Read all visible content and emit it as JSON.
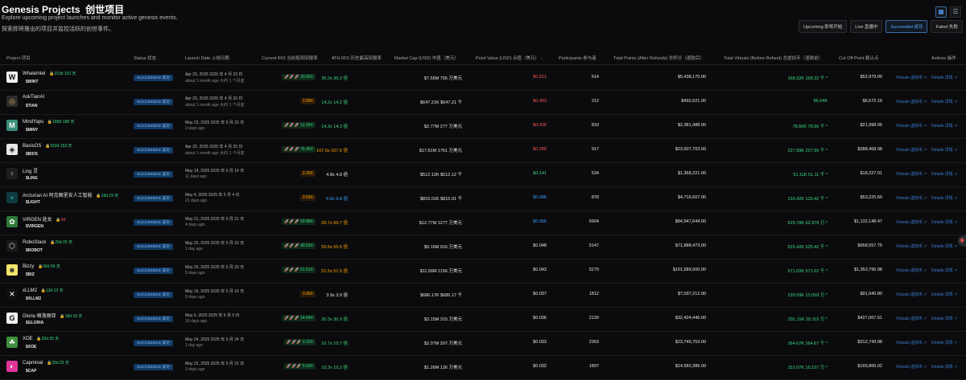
{
  "header": {
    "title": "Genesis Projects",
    "title_cn": "创世项目",
    "subtitle": "Explore upcoming project launches and monitor active genesis events.",
    "subtitle_cn": "探索即将推出的项目并监控活跃的创世事件。"
  },
  "filters": [
    {
      "label": "Upcoming  即将开始",
      "active": false
    },
    {
      "label": "Live  直播中",
      "active": false
    },
    {
      "label": "Succeeded  成功",
      "active": true
    },
    {
      "label": "Failed  失败",
      "active": false
    }
  ],
  "view_buttons": [
    {
      "icon": "grid-view-icon",
      "glyph": "▦"
    },
    {
      "icon": "list-view-icon",
      "glyph": "☰"
    }
  ],
  "columns": {
    "project": "Project  项目",
    "status": "Status  状态",
    "launch": "Launch Date  上线日期",
    "roi": "Current ROI  当前投资回报率",
    "ath": "ATH ROI  历史最高回报率",
    "mcap": "Market Cap (USD)  市值（美元）",
    "pv": "Point Value (USD)  点值（美元）  ↓",
    "participants": "Participants  参与者",
    "points": "Total Points (After Refunds)  总积分（退款后）",
    "virtuals": "Total Virtuals (Before Refund)  总虚拟币（退款前）",
    "cutoff": "Cut Off Point  截止点",
    "actions": "Actions  操作"
  },
  "actions": {
    "virtuals": "Virtuals  虚拟币 ↗",
    "details": "Details  详情 ↗"
  },
  "rows": [
    {
      "name": "WhaleIntel",
      "badge": "153d 153 天",
      "badge_color": "green",
      "ticker": "$WINT",
      "logo_bg": "#f0f0f0",
      "logo_fg": "#111",
      "logo_glyph": "W",
      "status": "SUCCEEDED  成功",
      "date": "Apr 23, 2025  2025 年 4 月 23 日",
      "ago": "about 1 month ago  大约 1 个月前",
      "roi": "33.65X",
      "roi_color": "green",
      "ath": "36.2x  36.2 倍",
      "ath_color": "green",
      "mcap": "$7.55M  755 万美元",
      "pv": "$0.521",
      "pv_color": "red",
      "participants": "614",
      "points": "$5,438,170.00",
      "virtuals": "168.32K  168.32 千 *",
      "cutoff": "$52,979.09"
    },
    {
      "name": "AskTianAI",
      "badge": "",
      "badge_color": "green",
      "ticker": "$TIAN",
      "logo_bg": "#2b2b2b",
      "logo_fg": "#d9b45a",
      "logo_glyph": "◎",
      "status": "SUCCEEDED  成功",
      "date": "Apr 20, 2025  2025 年 4 月 20 日",
      "ago": "about 1 month ago  大约 1 个月前",
      "roi": "2.89X",
      "roi_color": "orange",
      "ath": "14.2x  14.2 倍",
      "ath_color": "green",
      "mcap": "$647.21K  $647.21 千",
      "pv": "$0.493",
      "pv_color": "red",
      "participants": "212",
      "points": "$492,621.00",
      "virtuals": "86.04K",
      "cutoff": "$6,572.15"
    },
    {
      "name": "MindYaps",
      "badge": "188d 188 天",
      "badge_color": "green",
      "ticker": "$MINY",
      "logo_bg": "#3a8f7a",
      "logo_fg": "#fff",
      "logo_glyph": "M",
      "status": "SUCCEEDED  成功",
      "date": "May 23, 2025  2025 年 5 月 23 日",
      "ago": "2 days ago",
      "roi": "12.34X",
      "roi_color": "green",
      "ath": "14.3x  14.3 倍",
      "ath_color": "green",
      "mcap": "$2.77M  277 万美元",
      "pv": "$0.436",
      "pv_color": "red",
      "participants": "810",
      "points": "$2,381,488.00",
      "virtuals": "78.66K  78.66 千 *",
      "cutoff": "$21,998.05"
    },
    {
      "name": "BasisOS",
      "badge": "153d 153 天",
      "badge_color": "green",
      "ticker": "$BIOS",
      "logo_bg": "#e6e6e6",
      "logo_fg": "#111",
      "logo_glyph": "◈",
      "status": "SUCCEEDED  成功",
      "date": "Apr 25, 2025  2025 年 4 月 25 日",
      "ago": "about 1 month ago  大约 1 个月前",
      "roi": "76.45X",
      "roi_color": "green",
      "ath": "107.6x  107.6 倍",
      "ath_color": "orange",
      "mcap": "$17.61M  1761 万美元",
      "pv": "$0.280",
      "pv_color": "red",
      "participants": "917",
      "points": "$23,607,703.00",
      "virtuals": "227.99K  227.99 千 *",
      "cutoff": "$288,468.08"
    },
    {
      "name": "Ling 灵",
      "badge": "",
      "badge_color": "green",
      "ticker": "$LING",
      "logo_bg": "#1e1e1e",
      "logo_fg": "#ccc",
      "logo_glyph": "♀",
      "status": "SUCCEEDED  成功",
      "date": "May 14, 2025  2025 年 5 月 14 日",
      "ago": "11 days ago",
      "roi": "2.29X",
      "roi_color": "orange",
      "ath": "4.8x  4.8 倍",
      "ath_color": "white",
      "mcap": "$512.12K  $512.12 千",
      "pv": "$0.141",
      "pv_color": "green",
      "participants": "534",
      "points": "$1,368,221.00",
      "virtuals": "51.11K  51.11 千 *",
      "cutoff": "$18,227.01"
    },
    {
      "name": "Arcturian AI  阿克图里安人工智能",
      "badge": "19d 19 天",
      "badge_color": "green",
      "ticker": "$LIGHT",
      "logo_bg": "#0f3a40",
      "logo_fg": "#4de0d0",
      "logo_glyph": "♆",
      "status": "SUCCEEDED  成功",
      "date": "May 4, 2025  2025 年 5 月 4 日",
      "ago": "21 days ago",
      "roi": "3.63X",
      "roi_color": "orange",
      "ath": "6.8x  6.8 倍",
      "ath_color": "blue",
      "mcap": "$815.01K  $815.01 千",
      "pv": "$0.085",
      "pv_color": "blue",
      "participants": "878",
      "points": "$4,716,607.00",
      "virtuals": "133.42K  133.42 千 *",
      "cutoff": "$53,225.60"
    },
    {
      "name": "VIRGEN  处女",
      "badge": "0d",
      "badge_color": "red",
      "ticker": "$VIRGEN",
      "logo_bg": "#2f7a3a",
      "logo_fg": "#fff",
      "logo_glyph": "✿",
      "status": "SUCCEEDED  成功",
      "date": "May 21, 2025  2025 年 5 月 21 日",
      "ago": "4 days ago",
      "roi": "59.88X",
      "roi_color": "green",
      "ath": "69.7x  69.7 倍",
      "ath_color": "orange",
      "mcap": "$12.77M  1277 万美元",
      "pv": "$0.056",
      "pv_color": "blue",
      "participants": "5904",
      "points": "$84,947,644.00",
      "virtuals": "629.78K  62.978 万 *",
      "cutoff": "$1,132,148.47"
    },
    {
      "name": "RoboStack",
      "badge": "29d 29 天",
      "badge_color": "green",
      "ticker": "$ROBOT",
      "logo_bg": "#1a1a1a",
      "logo_fg": "#ddd",
      "logo_glyph": "⬡",
      "status": "SUCCEEDED  成功",
      "date": "May 23, 2025  2025 年 5 月 23 日",
      "ago": "1 day ago",
      "roi": "40.91X",
      "roi_color": "green",
      "ath": "55.5x  55.5 倍",
      "ath_color": "orange",
      "mcap": "$9.16M  916 万美元",
      "pv": "$0.048",
      "pv_color": "white",
      "participants": "5147",
      "points": "$71,888,473.00",
      "virtuals": "525.42K  525.42 千 *",
      "cutoff": "$958,557.75"
    },
    {
      "name": "Bizzy",
      "badge": "66d 66 天",
      "badge_color": "green",
      "ticker": "$BIZ",
      "logo_bg": "#f2e36b",
      "logo_fg": "#333",
      "logo_glyph": "☻",
      "status": "SUCCEEDED  成功",
      "date": "May 20, 2025  2025 年 5 月 20 日",
      "ago": "5 days ago",
      "roi": "51.51X",
      "roi_color": "green",
      "ath": "51.5x  51.5 倍",
      "ath_color": "orange",
      "mcap": "$11.56M  1156 万美元",
      "pv": "$0.043",
      "pv_color": "white",
      "participants": "5279",
      "points": "$101,589,000.00",
      "virtuals": "571.02K  571.02 千 *",
      "cutoff": "$1,353,795.98"
    },
    {
      "name": "xLLM2",
      "badge": "13d 13 天",
      "badge_color": "green",
      "ticker": "$XLLM2",
      "logo_bg": "#111",
      "logo_fg": "#fff",
      "logo_glyph": "✕",
      "status": "SUCCEEDED  成功",
      "date": "May 16, 2025  2025 年 5 月 16 日",
      "ago": "9 days ago",
      "roi": "3.06X",
      "roi_color": "orange",
      "ath": "3.9x  3.9 倍",
      "ath_color": "white",
      "mcap": "$686.17K  $686.17 千",
      "pv": "$0.037",
      "pv_color": "white",
      "participants": "1812",
      "points": "$7,037,212.00",
      "virtuals": "130.59K  13.059 万 *",
      "cutoff": "$91,940.80"
    },
    {
      "name": "Gloria  格洛丽亚",
      "badge": "18d 18 天",
      "badge_color": "green",
      "ticker": "$GLORIA",
      "logo_bg": "#f0f0f0",
      "logo_fg": "#111",
      "logo_glyph": "G",
      "status": "SUCCEEDED  成功",
      "date": "May 6, 2025  2025 年 5 月 6 日",
      "ago": "19 days ago",
      "roi": "14.04X",
      "roi_color": "green",
      "ath": "30.3x  30.3 倍",
      "ath_color": "green",
      "mcap": "$3.15M  315 万美元",
      "pv": "$0.036",
      "pv_color": "white",
      "participants": "2130",
      "points": "$32,424,446.00",
      "virtuals": "291.15K  29.115 万 *",
      "cutoff": "$427,067.61"
    },
    {
      "name": "XOE",
      "badge": "30d 30 天",
      "badge_color": "green",
      "ticker": "$XOE",
      "logo_bg": "#3e8e3e",
      "logo_fg": "#fff",
      "logo_glyph": "☘",
      "status": "SUCCEEDED  成功",
      "date": "May 24, 2025  2025 年 5 月 24 日",
      "ago": "1 day ago",
      "roi": "9.22X",
      "roi_color": "green",
      "ath": "10.7x  10.7 倍",
      "ath_color": "green",
      "mcap": "$2.07M  207 万美元",
      "pv": "$0.033",
      "pv_color": "white",
      "participants": "2363",
      "points": "$23,749,753.00",
      "virtuals": "164.67K  164.67 千 *",
      "cutoff": "$312,743.98"
    },
    {
      "name": "Capminal",
      "badge": "29d 29 天",
      "badge_color": "green",
      "ticker": "$CAP",
      "logo_bg": "#e0359a",
      "logo_fg": "#fff",
      "logo_glyph": "◐",
      "status": "SUCCEEDED  成功",
      "date": "May 22, 2025  2025 年 5 月 22 日",
      "ago": "3 days ago",
      "roi": "5.59X",
      "roi_color": "green",
      "ath": "10.3x  10.3 倍",
      "ath_color": "green",
      "mcap": "$1.26M  126 万美元",
      "pv": "$0.032",
      "pv_color": "white",
      "participants": "1897",
      "points": "$14,582,386.00",
      "virtuals": "151.07K  15.107 万 *",
      "cutoff": "$193,866.02"
    }
  ],
  "colors": {
    "accent": "#58a6ff",
    "green": "#3ddc84",
    "orange": "#ffa500",
    "red": "#ff5555",
    "blue": "#3aa0ff"
  }
}
